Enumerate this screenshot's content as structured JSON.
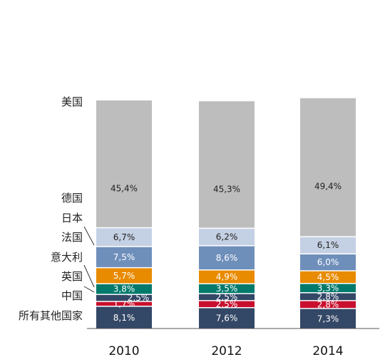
{
  "chart_data": {
    "type": "bar",
    "stacked": true,
    "categories": [
      "2010",
      "2012",
      "2014"
    ],
    "series": [
      {
        "name": "所有其他国家",
        "values": [
          8.1,
          7.6,
          7.3
        ],
        "labels": [
          "8,1%",
          "7,6%",
          "7,3%"
        ],
        "color": "#334766",
        "text_color": "#ffffff"
      },
      {
        "name": "中国",
        "values": [
          1.7,
          2.5,
          2.8
        ],
        "labels": [
          "1,7%",
          "2,5%",
          "2,8%"
        ],
        "color": "#c8102e",
        "text_color": "#ffffff"
      },
      {
        "name": "",
        "values": [
          2.5,
          2.5,
          2.8
        ],
        "labels": [
          "2,5%",
          "2,5%",
          "2,8%"
        ],
        "color": "#334766",
        "text_color": "#ffffff"
      },
      {
        "name": "英国",
        "values": [
          3.8,
          3.5,
          3.3
        ],
        "labels": [
          "3,8%",
          "3,5%",
          "3,3%"
        ],
        "color": "#007a6c",
        "text_color": "#ffffff"
      },
      {
        "name": "意大利",
        "values": [
          5.7,
          4.9,
          4.5
        ],
        "labels": [
          "5,7%",
          "4,9%",
          "4,5%"
        ],
        "color": "#e88b00",
        "text_color": "#ffffff"
      },
      {
        "name": "法国",
        "values": [
          7.5,
          8.6,
          6.0
        ],
        "labels": [
          "7,5%",
          "8,6%",
          "6,0%"
        ],
        "color": "#6f8fbb",
        "text_color": "#ffffff"
      },
      {
        "name": "日本",
        "values": [
          6.7,
          6.2,
          6.1
        ],
        "labels": [
          "6,7%",
          "6,2%",
          "6,1%"
        ],
        "color": "#c4d0e3",
        "text_color": "#222222"
      },
      {
        "name": "德国",
        "values": [
          45.4,
          45.3,
          49.4
        ],
        "labels": [
          "45,4%",
          "45,3%",
          "49,4%"
        ],
        "color": "#bdbdbd",
        "text_color": "#222222"
      }
    ],
    "legend_side_labels": [
      "美国",
      "德国",
      "日本",
      "法国",
      "意大利",
      "英国",
      "中国",
      "所有其他国家"
    ],
    "grid": false,
    "legend": "left"
  }
}
